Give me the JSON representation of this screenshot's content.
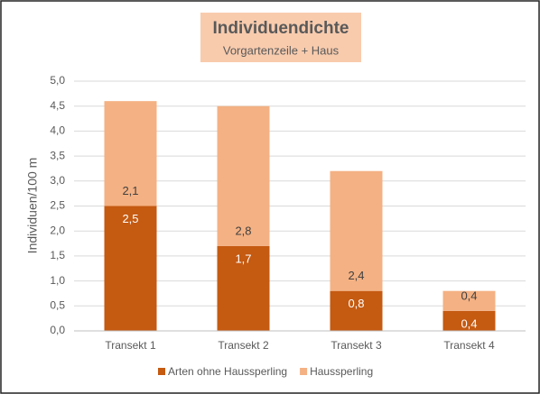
{
  "chart_data": {
    "type": "stacked_bar",
    "title": "Individuendichte",
    "subtitle": "Vorgartenzeile + Haus",
    "y_label": "Individuen/100 m",
    "categories": [
      "Transekt 1",
      "Transekt 2",
      "Transekt 3",
      "Transekt 4"
    ],
    "series": [
      {
        "name": "Arten ohne Haussperling",
        "color": "#c55a11",
        "values": [
          2.5,
          1.7,
          0.8,
          0.4
        ],
        "value_labels": [
          "2,5",
          "1,7",
          "0,8",
          "0,4"
        ]
      },
      {
        "name": "Haussperling",
        "color": "#f4b183",
        "values": [
          2.1,
          2.8,
          2.4,
          0.4
        ],
        "value_labels": [
          "2,1",
          "2,8",
          "2,4",
          "0,4"
        ]
      }
    ],
    "ylim": [
      0,
      5
    ],
    "yticks": [
      {
        "value": 0,
        "label": "0,0"
      },
      {
        "value": 0.5,
        "label": "0,5"
      },
      {
        "value": 1,
        "label": "1,0"
      },
      {
        "value": 1.5,
        "label": "1,5"
      },
      {
        "value": 2,
        "label": "2,0"
      },
      {
        "value": 2.5,
        "label": "2,5"
      },
      {
        "value": 3,
        "label": "3,0"
      },
      {
        "value": 3.5,
        "label": "3,5"
      },
      {
        "value": 4,
        "label": "4,0"
      },
      {
        "value": 4.5,
        "label": "4,5"
      },
      {
        "value": 5,
        "label": "5,0"
      }
    ],
    "grid": true,
    "legend": "bottom"
  }
}
